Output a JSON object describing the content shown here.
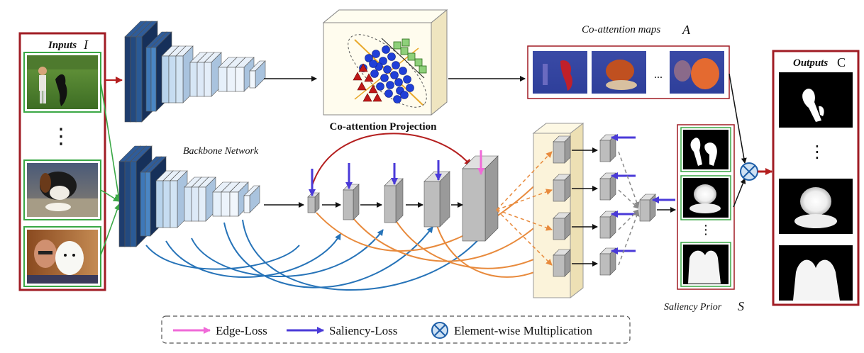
{
  "inputs": {
    "title": "Inputs",
    "symbol": "I",
    "ellipsis": "⋮"
  },
  "outputs": {
    "title": "Outputs",
    "symbol": "C",
    "ellipsis": "⋮"
  },
  "coattention_maps": {
    "title": "Co-attention maps",
    "symbol": "A",
    "ellipsis": "..."
  },
  "coattention_projection": {
    "title": "Co-attention Projection"
  },
  "backbone": {
    "title": "Backbone Network"
  },
  "saliency_prior": {
    "title": "Saliency Prior",
    "symbol": "S",
    "ellipsis": "⋮"
  },
  "legend": {
    "edge_loss": "Edge-Loss",
    "saliency_loss": "Saliency-Loss",
    "multiplication": "Element-wise Multiplication"
  },
  "colors": {
    "dark_red": "#a01c24",
    "green": "#3aa845",
    "blue_dark": "#24508c",
    "blue_light": "#dbe9f7",
    "arrow_blue": "#4a3ad8",
    "arrow_pink": "#f06ad8",
    "curve_blue": "#2673b8",
    "curve_orange": "#e88a3c",
    "curve_red": "#b41e1e"
  }
}
